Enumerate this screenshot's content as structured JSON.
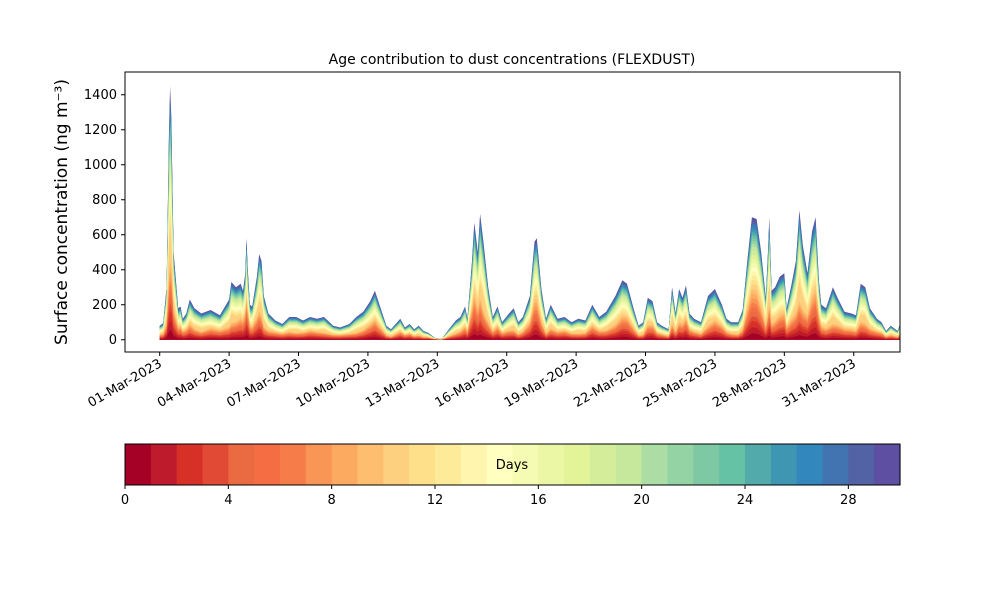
{
  "chart_data": {
    "type": "area",
    "title": "Age contribution to dust concentrations (FLEXDUST)",
    "ylabel": "Surface concentration (ng m⁻³)",
    "ylim": [
      -70,
      1530
    ],
    "yticks": [
      0,
      200,
      400,
      600,
      800,
      1000,
      1200,
      1400
    ],
    "xlim": [
      -0.5,
      33.0
    ],
    "xticks": [
      {
        "day": 1,
        "label": "01-Mar-2023"
      },
      {
        "day": 4,
        "label": "04-Mar-2023"
      },
      {
        "day": 7,
        "label": "07-Mar-2023"
      },
      {
        "day": 10,
        "label": "10-Mar-2023"
      },
      {
        "day": 13,
        "label": "13-Mar-2023"
      },
      {
        "day": 16,
        "label": "16-Mar-2023"
      },
      {
        "day": 19,
        "label": "19-Mar-2023"
      },
      {
        "day": 22,
        "label": "22-Mar-2023"
      },
      {
        "day": 25,
        "label": "25-Mar-2023"
      },
      {
        "day": 28,
        "label": "28-Mar-2023"
      },
      {
        "day": 31,
        "label": "31-Mar-2023"
      }
    ],
    "x_unit": "day of March 2023",
    "total": [
      [
        1.0,
        80
      ],
      [
        1.15,
        95
      ],
      [
        1.3,
        300
      ],
      [
        1.4,
        1200
      ],
      [
        1.45,
        1450
      ],
      [
        1.5,
        1280
      ],
      [
        1.6,
        500
      ],
      [
        1.8,
        180
      ],
      [
        1.9,
        190
      ],
      [
        2.0,
        120
      ],
      [
        2.15,
        150
      ],
      [
        2.3,
        230
      ],
      [
        2.5,
        180
      ],
      [
        2.8,
        150
      ],
      [
        3.2,
        170
      ],
      [
        3.6,
        140
      ],
      [
        4.0,
        230
      ],
      [
        4.1,
        330
      ],
      [
        4.3,
        300
      ],
      [
        4.5,
        320
      ],
      [
        4.6,
        280
      ],
      [
        4.7,
        380
      ],
      [
        4.75,
        580
      ],
      [
        4.8,
        420
      ],
      [
        4.9,
        200
      ],
      [
        5.0,
        190
      ],
      [
        5.2,
        360
      ],
      [
        5.3,
        490
      ],
      [
        5.4,
        450
      ],
      [
        5.5,
        250
      ],
      [
        5.7,
        150
      ],
      [
        6.0,
        110
      ],
      [
        6.3,
        90
      ],
      [
        6.6,
        130
      ],
      [
        6.9,
        130
      ],
      [
        7.2,
        110
      ],
      [
        7.5,
        130
      ],
      [
        7.8,
        120
      ],
      [
        8.1,
        130
      ],
      [
        8.5,
        80
      ],
      [
        8.8,
        70
      ],
      [
        9.2,
        90
      ],
      [
        9.5,
        130
      ],
      [
        9.8,
        160
      ],
      [
        10.1,
        220
      ],
      [
        10.3,
        280
      ],
      [
        10.5,
        200
      ],
      [
        10.8,
        80
      ],
      [
        11.0,
        60
      ],
      [
        11.2,
        90
      ],
      [
        11.4,
        120
      ],
      [
        11.6,
        70
      ],
      [
        11.8,
        90
      ],
      [
        12.0,
        60
      ],
      [
        12.2,
        80
      ],
      [
        12.4,
        50
      ],
      [
        12.6,
        40
      ],
      [
        12.9,
        10
      ],
      [
        13.2,
        5
      ],
      [
        13.5,
        60
      ],
      [
        13.8,
        110
      ],
      [
        14.0,
        130
      ],
      [
        14.2,
        190
      ],
      [
        14.3,
        120
      ],
      [
        14.5,
        450
      ],
      [
        14.6,
        670
      ],
      [
        14.75,
        500
      ],
      [
        14.85,
        720
      ],
      [
        15.0,
        550
      ],
      [
        15.2,
        300
      ],
      [
        15.4,
        130
      ],
      [
        15.6,
        190
      ],
      [
        15.8,
        100
      ],
      [
        16.1,
        150
      ],
      [
        16.3,
        180
      ],
      [
        16.5,
        100
      ],
      [
        16.7,
        130
      ],
      [
        17.0,
        250
      ],
      [
        17.2,
        560
      ],
      [
        17.3,
        580
      ],
      [
        17.5,
        290
      ],
      [
        17.7,
        120
      ],
      [
        17.9,
        200
      ],
      [
        18.2,
        120
      ],
      [
        18.5,
        130
      ],
      [
        18.8,
        100
      ],
      [
        19.1,
        120
      ],
      [
        19.4,
        110
      ],
      [
        19.7,
        200
      ],
      [
        20.0,
        130
      ],
      [
        20.3,
        160
      ],
      [
        20.7,
        250
      ],
      [
        21.0,
        340
      ],
      [
        21.2,
        320
      ],
      [
        21.5,
        170
      ],
      [
        21.7,
        80
      ],
      [
        21.9,
        100
      ],
      [
        22.1,
        240
      ],
      [
        22.3,
        220
      ],
      [
        22.5,
        100
      ],
      [
        22.7,
        80
      ],
      [
        23.0,
        60
      ],
      [
        23.15,
        300
      ],
      [
        23.3,
        150
      ],
      [
        23.45,
        290
      ],
      [
        23.6,
        240
      ],
      [
        23.75,
        310
      ],
      [
        23.9,
        150
      ],
      [
        24.1,
        120
      ],
      [
        24.4,
        100
      ],
      [
        24.7,
        250
      ],
      [
        25.0,
        290
      ],
      [
        25.3,
        200
      ],
      [
        25.5,
        120
      ],
      [
        25.7,
        100
      ],
      [
        26.0,
        100
      ],
      [
        26.2,
        170
      ],
      [
        26.4,
        450
      ],
      [
        26.6,
        700
      ],
      [
        26.8,
        690
      ],
      [
        27.0,
        500
      ],
      [
        27.2,
        240
      ],
      [
        27.3,
        520
      ],
      [
        27.35,
        700
      ],
      [
        27.45,
        280
      ],
      [
        27.6,
        300
      ],
      [
        27.8,
        360
      ],
      [
        28.0,
        380
      ],
      [
        28.1,
        180
      ],
      [
        28.3,
        310
      ],
      [
        28.5,
        450
      ],
      [
        28.65,
        740
      ],
      [
        28.8,
        540
      ],
      [
        29.0,
        380
      ],
      [
        29.2,
        620
      ],
      [
        29.35,
        700
      ],
      [
        29.5,
        330
      ],
      [
        29.6,
        200
      ],
      [
        29.8,
        180
      ],
      [
        30.1,
        300
      ],
      [
        30.3,
        240
      ],
      [
        30.6,
        160
      ],
      [
        30.9,
        150
      ],
      [
        31.1,
        140
      ],
      [
        31.3,
        320
      ],
      [
        31.5,
        300
      ],
      [
        31.7,
        180
      ],
      [
        32.0,
        120
      ],
      [
        32.2,
        100
      ],
      [
        32.4,
        50
      ],
      [
        32.6,
        80
      ],
      [
        32.9,
        50
      ],
      [
        33.0,
        90
      ]
    ],
    "colorbar": {
      "label": "Days",
      "ticks": [
        0,
        4,
        8,
        12,
        16,
        20,
        24,
        28
      ],
      "min": 0,
      "max": 30,
      "colormap": "Spectral",
      "colors": [
        "#a50026",
        "#be1c2c",
        "#d73027",
        "#e14a34",
        "#ea6a42",
        "#f46d43",
        "#f67d4a",
        "#f99555",
        "#fcaa5f",
        "#fdbf6f",
        "#fdd080",
        "#fee08b",
        "#feeb99",
        "#fff5ae",
        "#ffffbf",
        "#f5fbb2",
        "#ecf7a6",
        "#e2f398",
        "#d4ed9a",
        "#c6e89d",
        "#abdda4",
        "#94d4a4",
        "#7ec9a4",
        "#66c2a5",
        "#52abaa",
        "#3f96b3",
        "#3288bd",
        "#4274b1",
        "#5361a5",
        "#5e4fa2"
      ]
    }
  }
}
